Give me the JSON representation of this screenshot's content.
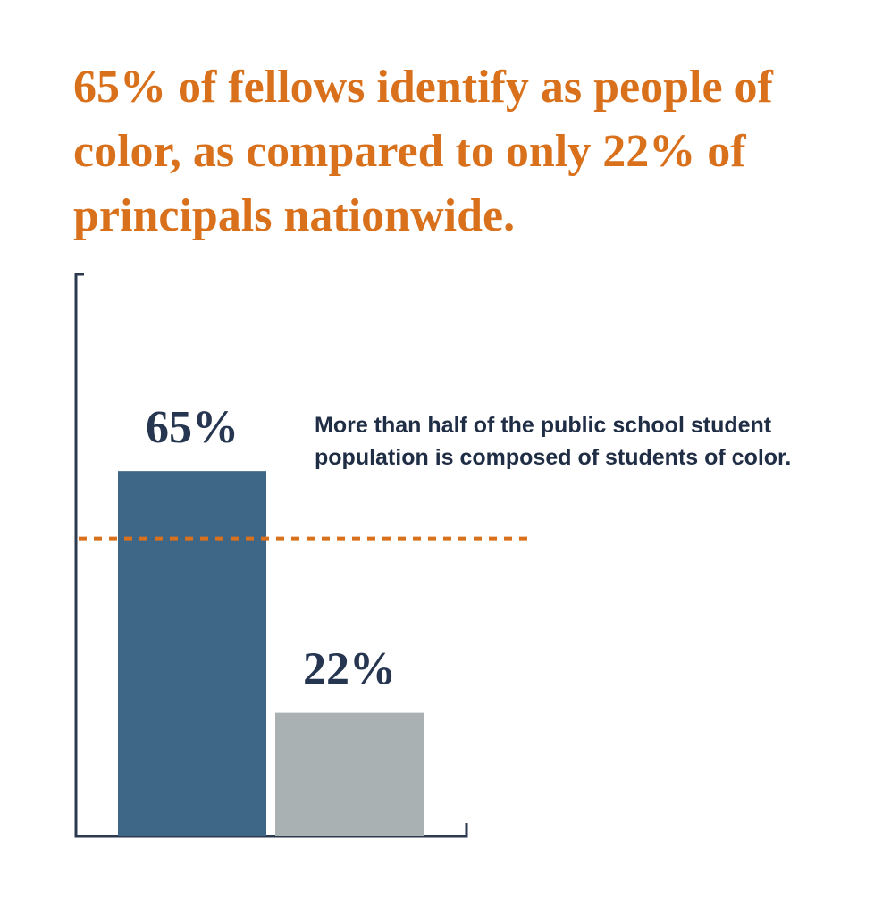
{
  "chart_data": {
    "type": "bar",
    "title": "65% of fellows identify as people of color, as compared to only 22% of principals nationwide.",
    "categories": [
      null,
      null
    ],
    "values": [
      65,
      22
    ],
    "value_labels": [
      "65%",
      "22%"
    ],
    "colors": [
      "#3e6687",
      "#a9b1b3"
    ],
    "ylim": [
      0,
      100
    ],
    "reference_line": {
      "value": 53,
      "label": "More than half of the public school student population is composed of students of color.",
      "color": "#d9711c"
    }
  }
}
